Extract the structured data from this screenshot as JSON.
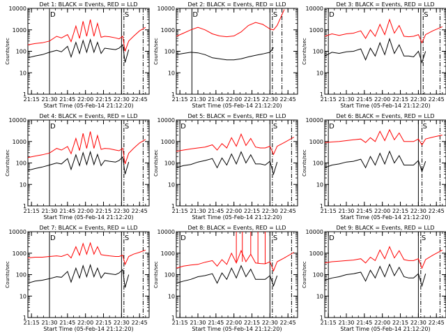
{
  "figure": {
    "x_axis_label": "Start Time (05-Feb-14 21:12:20)",
    "y_axis_label": "Counts/sec",
    "x_tick_labels": [
      "21:15",
      "21:30",
      "21:45",
      "22:00",
      "22:15",
      "22:30",
      "22:45"
    ],
    "y_tick_labels": [
      "1",
      "10",
      "100",
      "1000",
      "10000"
    ],
    "annotations": {
      "start_marker": "D",
      "end_marker": "S"
    },
    "colors": {
      "events": "#000000",
      "lld": "#ff0000",
      "axes": "#000000",
      "background": "#ffffff"
    }
  },
  "chart_data": [
    {
      "type": "line",
      "title": "Det 1: BLACK = Events, RED = LLD",
      "xlabel": "Start Time (05-Feb-14 21:12:20)",
      "ylabel": "Counts/sec",
      "yscale": "log",
      "ylim": [
        1,
        10000
      ],
      "xlim": [
        "21:12",
        "22:53"
      ],
      "x": [
        "21:12",
        "21:18",
        "21:24",
        "21:30",
        "21:36",
        "21:40",
        "21:45",
        "21:48",
        "21:52",
        "21:55",
        "21:58",
        "22:01",
        "22:04",
        "22:07",
        "22:10",
        "22:13",
        "22:16",
        "22:20",
        "22:25",
        "22:28",
        "22:31",
        "22:33",
        "22:36",
        "22:40",
        "22:45",
        "22:50"
      ],
      "series": [
        {
          "name": "Events",
          "values": [
            50,
            60,
            70,
            90,
            110,
            95,
            170,
            55,
            260,
            80,
            320,
            90,
            350,
            90,
            260,
            80,
            140,
            130,
            120,
            140,
            200,
            30,
            120,
            null,
            null,
            null
          ]
        },
        {
          "name": "LLD",
          "values": [
            200,
            230,
            250,
            300,
            500,
            420,
            600,
            280,
            1500,
            400,
            2500,
            500,
            3000,
            500,
            2000,
            450,
            500,
            480,
            420,
            380,
            500,
            100,
            300,
            500,
            900,
            1300
          ]
        }
      ],
      "vertical_lines": [
        {
          "x": "21:30",
          "style": "solid"
        },
        {
          "x": "22:30",
          "style": "solid"
        },
        {
          "x": "22:32",
          "style": "dash-dot"
        },
        {
          "x": "22:48",
          "style": "dash-dot"
        }
      ]
    },
    {
      "type": "line",
      "title": "Det 2: BLACK = Events, RED = LLD",
      "xlabel": "Start Time (05-Feb-14 21:12:20)",
      "ylabel": "Counts/sec",
      "yscale": "log",
      "ylim": [
        1,
        10000
      ],
      "xlim": [
        "21:12",
        "22:53"
      ],
      "x": [
        "21:12",
        "21:18",
        "21:24",
        "21:30",
        "21:36",
        "21:42",
        "21:48",
        "21:54",
        "22:00",
        "22:06",
        "22:12",
        "22:18",
        "22:24",
        "22:30",
        "22:33",
        "22:36",
        "22:42"
      ],
      "series": [
        {
          "name": "Events",
          "values": [
            70,
            80,
            90,
            85,
            70,
            50,
            45,
            40,
            40,
            45,
            55,
            65,
            75,
            90,
            150,
            null,
            null
          ]
        },
        {
          "name": "LLD",
          "values": [
            500,
            700,
            1000,
            1300,
            1000,
            650,
            520,
            480,
            520,
            800,
            1600,
            2200,
            1800,
            1100,
            1000,
            1600,
            9000
          ]
        }
      ],
      "vertical_lines": [
        {
          "x": "21:25",
          "style": "solid"
        },
        {
          "x": "22:30",
          "style": "solid"
        },
        {
          "x": "22:32",
          "style": "dash-dot"
        },
        {
          "x": "22:40",
          "style": "dash-dot"
        }
      ]
    },
    {
      "type": "line",
      "title": "Det 3: BLACK = Events, RED = LLD",
      "xlabel": "Start Time (05-Feb-14 21:12:20)",
      "ylabel": "Counts/sec",
      "yscale": "log",
      "ylim": [
        1,
        10000
      ],
      "xlim": [
        "21:12",
        "22:53"
      ],
      "x": [
        "21:12",
        "21:18",
        "21:24",
        "21:30",
        "21:36",
        "21:42",
        "21:46",
        "21:50",
        "21:54",
        "21:58",
        "22:02",
        "22:06",
        "22:10",
        "22:14",
        "22:18",
        "22:22",
        "22:26",
        "22:30",
        "22:33",
        "22:36",
        "22:42",
        "22:50"
      ],
      "series": [
        {
          "name": "Events",
          "values": [
            60,
            90,
            80,
            95,
            100,
            130,
            40,
            140,
            60,
            250,
            70,
            380,
            80,
            200,
            60,
            60,
            55,
            100,
            30,
            100,
            null,
            null
          ]
        },
        {
          "name": "LLD",
          "values": [
            500,
            650,
            550,
            650,
            700,
            900,
            400,
            1000,
            500,
            1800,
            600,
            3000,
            700,
            1600,
            500,
            480,
            500,
            600,
            250,
            600,
            900,
            1400
          ]
        }
      ],
      "vertical_lines": [
        {
          "x": "21:15",
          "style": "solid"
        },
        {
          "x": "22:32",
          "style": "solid"
        },
        {
          "x": "22:34",
          "style": "dash-dot"
        },
        {
          "x": "22:48",
          "style": "dash-dot"
        }
      ]
    },
    {
      "type": "line",
      "title": "Det 4: BLACK = Events, RED = LLD",
      "xlabel": "Start Time (05-Feb-14 21:12:20)",
      "ylabel": "Counts/sec",
      "yscale": "log",
      "ylim": [
        1,
        10000
      ],
      "xlim": [
        "21:12",
        "22:53"
      ],
      "x": [
        "21:12",
        "21:18",
        "21:24",
        "21:30",
        "21:36",
        "21:40",
        "21:45",
        "21:48",
        "21:52",
        "21:55",
        "21:58",
        "22:01",
        "22:04",
        "22:07",
        "22:10",
        "22:13",
        "22:16",
        "22:20",
        "22:25",
        "22:28",
        "22:31",
        "22:33",
        "22:36",
        "22:40",
        "22:45",
        "22:50"
      ],
      "series": [
        {
          "name": "Events",
          "values": [
            45,
            55,
            65,
            80,
            100,
            90,
            160,
            50,
            240,
            75,
            300,
            85,
            330,
            85,
            250,
            75,
            130,
            120,
            110,
            130,
            190,
            30,
            110,
            null,
            null,
            null
          ]
        },
        {
          "name": "LLD",
          "values": [
            180,
            210,
            240,
            290,
            480,
            400,
            580,
            270,
            1400,
            380,
            2400,
            480,
            2900,
            480,
            1900,
            430,
            480,
            460,
            400,
            370,
            480,
            90,
            280,
            480,
            850,
            1250
          ]
        }
      ],
      "vertical_lines": [
        {
          "x": "21:30",
          "style": "solid"
        },
        {
          "x": "22:30",
          "style": "solid"
        },
        {
          "x": "22:32",
          "style": "dash-dot"
        },
        {
          "x": "22:48",
          "style": "dash-dot"
        }
      ]
    },
    {
      "type": "line",
      "title": "Det 5: BLACK = Events, RED = LLD",
      "xlabel": "Start Time (05-Feb-14 21:12:20)",
      "ylabel": "Counts/sec",
      "yscale": "log",
      "ylim": [
        1,
        10000
      ],
      "xlim": [
        "21:12",
        "22:53"
      ],
      "x": [
        "21:12",
        "21:18",
        "21:24",
        "21:30",
        "21:36",
        "21:42",
        "21:46",
        "21:50",
        "21:54",
        "21:58",
        "22:02",
        "22:06",
        "22:10",
        "22:14",
        "22:18",
        "22:22",
        "22:26",
        "22:30",
        "22:33",
        "22:36",
        "22:42",
        "22:50"
      ],
      "series": [
        {
          "name": "Events",
          "values": [
            60,
            75,
            85,
            110,
            130,
            160,
            60,
            170,
            80,
            260,
            90,
            330,
            100,
            240,
            90,
            90,
            80,
            120,
            30,
            110,
            null,
            null
          ]
        },
        {
          "name": "LLD",
          "values": [
            350,
            400,
            450,
            500,
            550,
            700,
            400,
            800,
            500,
            1500,
            600,
            2200,
            650,
            1400,
            550,
            500,
            500,
            600,
            250,
            600,
            900,
            1600
          ]
        }
      ],
      "vertical_lines": [
        {
          "x": "21:15",
          "style": "solid"
        },
        {
          "x": "22:30",
          "style": "solid"
        },
        {
          "x": "22:32",
          "style": "dash-dot"
        },
        {
          "x": "22:48",
          "style": "dash-dot"
        }
      ]
    },
    {
      "type": "line",
      "title": "Det 6: BLACK = Events, RED = LLD",
      "xlabel": "Start Time (05-Feb-14 21:12:20)",
      "ylabel": "Counts/sec",
      "yscale": "log",
      "ylim": [
        1,
        10000
      ],
      "xlim": [
        "21:12",
        "22:53"
      ],
      "x": [
        "21:12",
        "21:18",
        "21:24",
        "21:30",
        "21:36",
        "21:42",
        "21:46",
        "21:50",
        "21:54",
        "21:58",
        "22:02",
        "22:06",
        "22:10",
        "22:14",
        "22:18",
        "22:22",
        "22:26",
        "22:30",
        "22:33",
        "22:36",
        "22:42",
        "22:50"
      ],
      "series": [
        {
          "name": "Events",
          "values": [
            60,
            80,
            90,
            110,
            120,
            150,
            60,
            200,
            80,
            280,
            90,
            350,
            100,
            220,
            80,
            80,
            80,
            130,
            40,
            120,
            null,
            null
          ]
        },
        {
          "name": "LLD",
          "values": [
            900,
            950,
            1000,
            1100,
            1200,
            1300,
            900,
            1500,
            1000,
            3000,
            1100,
            3500,
            1200,
            2500,
            1000,
            1000,
            1000,
            1300,
            700,
            1300,
            1600,
            2000
          ]
        }
      ],
      "vertical_lines": [
        {
          "x": "21:15",
          "style": "solid"
        },
        {
          "x": "22:30",
          "style": "solid"
        },
        {
          "x": "22:33",
          "style": "dash-dot"
        },
        {
          "x": "22:48",
          "style": "dash-dot"
        }
      ]
    },
    {
      "type": "line",
      "title": "Det 7: BLACK = Events, RED = LLD",
      "xlabel": "Start Time (05-Feb-14 21:12:20)",
      "ylabel": "Counts/sec",
      "yscale": "log",
      "ylim": [
        1,
        10000
      ],
      "xlim": [
        "21:12",
        "22:53"
      ],
      "x": [
        "21:12",
        "21:18",
        "21:24",
        "21:30",
        "21:36",
        "21:40",
        "21:45",
        "21:48",
        "21:52",
        "21:55",
        "21:58",
        "22:01",
        "22:04",
        "22:07",
        "22:10",
        "22:13",
        "22:16",
        "22:20",
        "22:25",
        "22:28",
        "22:31",
        "22:33",
        "22:36",
        "22:40",
        "22:45",
        "22:50"
      ],
      "series": [
        {
          "name": "Events",
          "values": [
            40,
            50,
            55,
            65,
            80,
            75,
            140,
            45,
            200,
            70,
            260,
            80,
            280,
            80,
            200,
            70,
            120,
            110,
            100,
            120,
            170,
            25,
            100,
            null,
            null,
            null
          ]
        },
        {
          "name": "LLD",
          "values": [
            600,
            650,
            650,
            700,
            750,
            700,
            900,
            600,
            2000,
            800,
            2800,
            900,
            3000,
            900,
            2000,
            850,
            800,
            750,
            700,
            700,
            800,
            300,
            700,
            900,
            1100,
            1400
          ]
        }
      ],
      "vertical_lines": [
        {
          "x": "21:30",
          "style": "solid"
        },
        {
          "x": "22:30",
          "style": "solid"
        },
        {
          "x": "22:32",
          "style": "dash-dot"
        },
        {
          "x": "22:48",
          "style": "dash-dot"
        }
      ]
    },
    {
      "type": "line",
      "title": "Det 8: BLACK = Events, RED = LLD",
      "xlabel": "Start Time (05-Feb-14 21:12:20)",
      "ylabel": "Counts/sec",
      "yscale": "log",
      "ylim": [
        1,
        10000
      ],
      "xlim": [
        "21:12",
        "22:53"
      ],
      "x": [
        "21:12",
        "21:18",
        "21:24",
        "21:30",
        "21:36",
        "21:42",
        "21:46",
        "21:50",
        "21:54",
        "21:58",
        "22:02",
        "22:06",
        "22:10",
        "22:14",
        "22:18",
        "22:22",
        "22:26",
        "22:30",
        "22:33",
        "22:36",
        "22:42",
        "22:50"
      ],
      "series": [
        {
          "name": "Events",
          "values": [
            40,
            50,
            60,
            80,
            90,
            110,
            40,
            120,
            60,
            200,
            70,
            260,
            80,
            180,
            60,
            60,
            60,
            90,
            30,
            90,
            null,
            null
          ]
        },
        {
          "name": "LLD",
          "values": [
            200,
            250,
            280,
            300,
            380,
            450,
            250,
            500,
            300,
            1000,
            350,
            1300,
            400,
            900,
            350,
            330,
            320,
            400,
            150,
            400,
            600,
            1100
          ]
        }
      ],
      "vertical_lines": [
        {
          "x": "21:15",
          "style": "solid"
        },
        {
          "x": "22:30",
          "style": "solid"
        },
        {
          "x": "22:32",
          "style": "dash-dot"
        },
        {
          "x": "22:48",
          "style": "dash-dot"
        }
      ],
      "spikes": [
        {
          "series": "LLD",
          "x": "22:02",
          "value": 10000
        },
        {
          "series": "LLD",
          "x": "22:07",
          "value": 10000
        },
        {
          "series": "LLD",
          "x": "22:14",
          "value": 10000
        },
        {
          "series": "LLD",
          "x": "22:20",
          "value": 10000
        },
        {
          "series": "LLD",
          "x": "22:26",
          "value": 10000
        }
      ]
    },
    {
      "type": "line",
      "title": "Det 9: BLACK = Events, RED = LLD",
      "xlabel": "Start Time (05-Feb-14 21:12:20)",
      "ylabel": "Counts/sec",
      "yscale": "log",
      "ylim": [
        1,
        10000
      ],
      "xlim": [
        "21:12",
        "22:53"
      ],
      "x": [
        "21:12",
        "21:18",
        "21:24",
        "21:30",
        "21:36",
        "21:42",
        "21:46",
        "21:50",
        "21:54",
        "21:58",
        "22:02",
        "22:06",
        "22:10",
        "22:14",
        "22:18",
        "22:22",
        "22:26",
        "22:30",
        "22:33",
        "22:36",
        "22:42",
        "22:50"
      ],
      "series": [
        {
          "name": "Events",
          "values": [
            55,
            70,
            80,
            100,
            110,
            130,
            50,
            160,
            70,
            240,
            80,
            300,
            90,
            220,
            80,
            70,
            70,
            110,
            30,
            110,
            null,
            null
          ]
        },
        {
          "name": "LLD",
          "values": [
            350,
            400,
            420,
            450,
            480,
            550,
            350,
            650,
            450,
            1400,
            550,
            2000,
            600,
            1300,
            500,
            450,
            450,
            550,
            200,
            500,
            800,
            1400
          ]
        }
      ],
      "vertical_lines": [
        {
          "x": "21:15",
          "style": "solid"
        },
        {
          "x": "22:30",
          "style": "solid"
        },
        {
          "x": "22:32",
          "style": "dash-dot"
        },
        {
          "x": "22:48",
          "style": "dash-dot"
        }
      ]
    }
  ]
}
